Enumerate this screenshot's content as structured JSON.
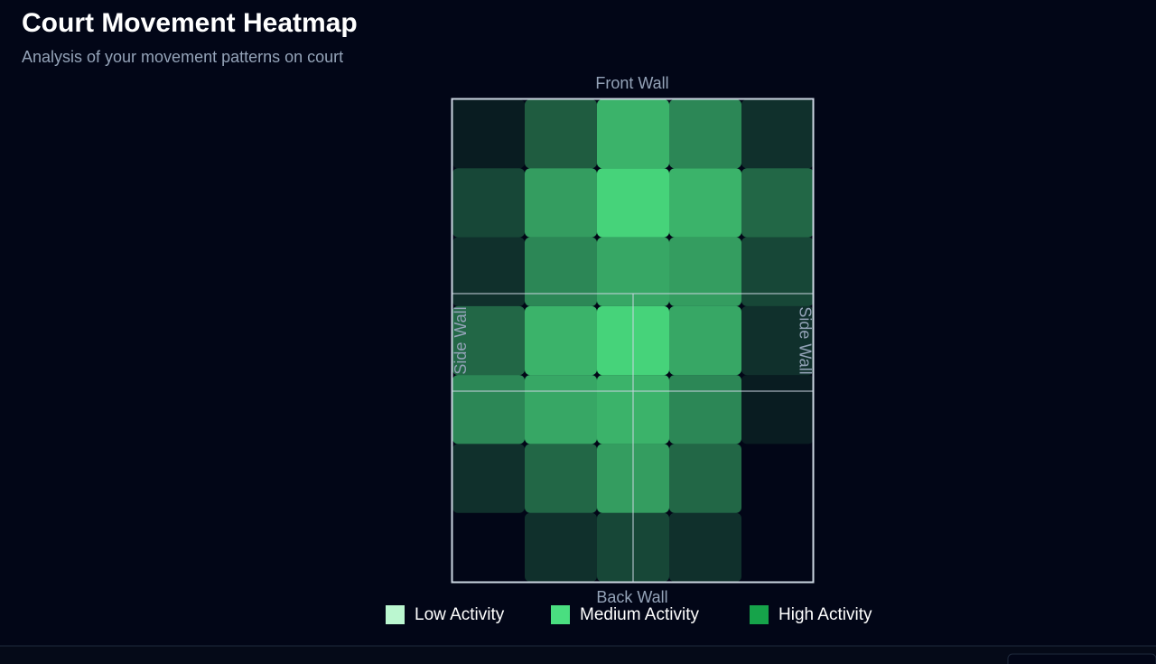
{
  "chart_data": {
    "type": "heatmap",
    "title": "Court Movement Heatmap",
    "subtitle": "Analysis of your movement patterns on court",
    "labels": {
      "top": "Front Wall",
      "bottom": "Back Wall",
      "left": "Side Wall",
      "right": "Side Wall"
    },
    "color": "#4ade80",
    "range": [
      0,
      100
    ],
    "values": [
      [
        10,
        40,
        80,
        60,
        20
      ],
      [
        30,
        70,
        95,
        80,
        45
      ],
      [
        20,
        60,
        75,
        70,
        30
      ],
      [
        45,
        80,
        95,
        75,
        20
      ],
      [
        60,
        75,
        80,
        60,
        10
      ],
      [
        20,
        45,
        70,
        45,
        0
      ],
      [
        0,
        20,
        30,
        20,
        0
      ]
    ],
    "legend": [
      {
        "name": "Low Activity",
        "color": "#bbf7d0"
      },
      {
        "name": "Medium Activity",
        "color": "#4ade80"
      },
      {
        "name": "High Activity",
        "color": "#16a34a"
      }
    ]
  }
}
